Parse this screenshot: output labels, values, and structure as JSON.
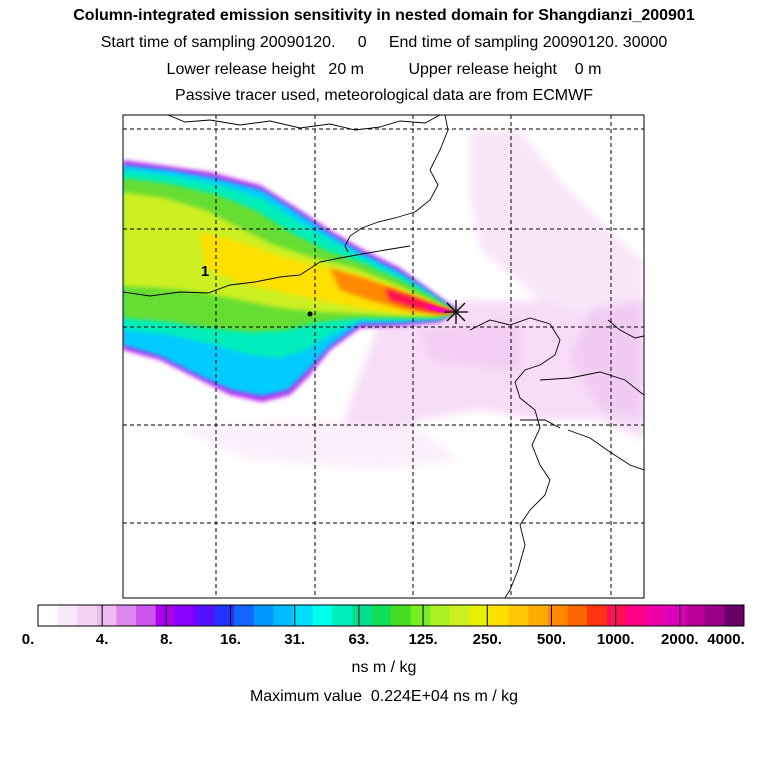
{
  "header": {
    "title": "Column-integrated emission sensitivity in nested domain for Shangdianzi_200901",
    "sampling_line": "Start time of sampling 20090120.     0     End time of sampling 20090120. 30000",
    "release_line": "Lower release height   20 m          Upper release height    0 m",
    "tracer_line": "Passive tracer used, meteorological data are from ECMWF"
  },
  "map": {
    "label": "1",
    "receptor_marker": "star-cross-icon"
  },
  "colorbar": {
    "ticks": [
      "0.",
      "4.",
      "8.",
      "16.",
      "31.",
      "63.",
      "125.",
      "250.",
      "500.",
      "1000.",
      "2000.",
      "4000."
    ],
    "colors": [
      "#ffffff",
      "#fbe9fb",
      "#f5d3f5",
      "#eebbee",
      "#dd88ee",
      "#cc55ee",
      "#aa00ee",
      "#8800ff",
      "#5511ff",
      "#2233ff",
      "#1166ff",
      "#0099ff",
      "#00bbff",
      "#00ddff",
      "#00ffee",
      "#00eebb",
      "#00e090",
      "#11dd55",
      "#44dd22",
      "#77ee22",
      "#aaf222",
      "#ccf022",
      "#e8f000",
      "#ffe000",
      "#ffc800",
      "#ffaa00",
      "#ff8800",
      "#ff6600",
      "#ff3311",
      "#ff1155",
      "#ff0088",
      "#ee00aa",
      "#dd00bb",
      "#bb0099",
      "#990088",
      "#660066"
    ],
    "unit": "ns m / kg"
  },
  "max_value": "Maximum value  0.224E+04 ns m / kg"
}
